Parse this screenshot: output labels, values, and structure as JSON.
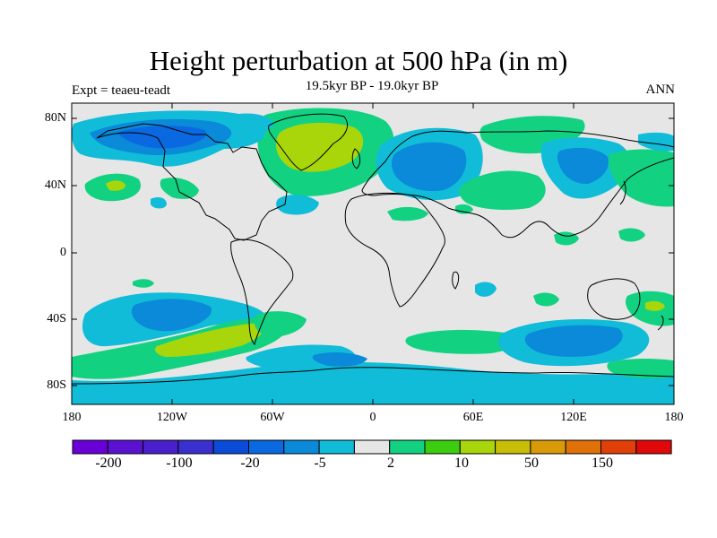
{
  "title": "Height perturbation at 500 hPa (in m)",
  "subtitle": "19.5kyr BP - 19.0kyr BP",
  "left_label": "Expt = teaeu-teadt",
  "right_label": "ANN",
  "map": {
    "projection": "cylindrical-equidistant",
    "lon_range": [
      -180,
      180
    ],
    "lat_range": [
      -90,
      90
    ],
    "lat_ticks": [
      "80N",
      "40N",
      "0",
      "40S",
      "80S"
    ],
    "lon_ticks": [
      "180",
      "120W",
      "60W",
      "0",
      "60E",
      "120E",
      "180"
    ],
    "background_color": "#e6e6e6"
  },
  "colorbar": {
    "colors": [
      "#6a00d8",
      "#5a12d0",
      "#4a20cc",
      "#3a30cf",
      "#0a4cd8",
      "#0a68e0",
      "#0a8ad8",
      "#10bcd8",
      "#e6e6e6",
      "#12d282",
      "#3ccc10",
      "#a8d60a",
      "#c8be08",
      "#d89a08",
      "#e07008",
      "#e04008",
      "#e00808"
    ],
    "labels": [
      "-200",
      "-100",
      "-20",
      "-5",
      "2",
      "10",
      "50",
      "150"
    ]
  }
}
